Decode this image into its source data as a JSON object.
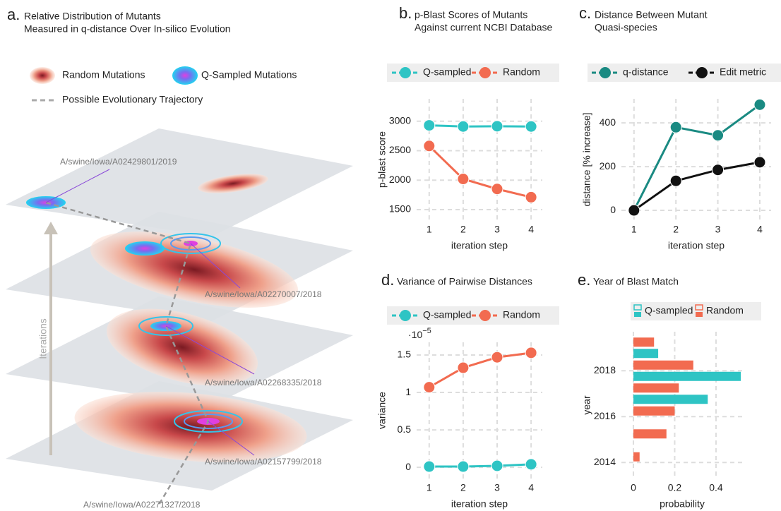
{
  "illustration": {
    "label": "a.",
    "title": [
      "Relative Distribution of Mutants",
      "Measured in q-distance Over In-silico Evolution"
    ],
    "legend": [
      "Random Mutations",
      "Q-Sampled Mutations",
      "Possible Evolutionary Trajectory"
    ],
    "strains": [
      "A/swine/Iowa/A02429801/2019",
      "A/swine/Iowa/A02270007/2018",
      "A/swine/Iowa/A02268335/2018",
      "A/swine/Iowa/A02157799/2018",
      "A/swine/Iowa/A02271327/2018"
    ],
    "axis_label": "Iterations"
  },
  "chart_data": [
    {
      "type": "line",
      "label": "b.",
      "title": [
        "p-Blast Scores of Mutants",
        "Against current NCBI Database"
      ],
      "x": [
        1,
        2,
        3,
        4
      ],
      "xlim": [
        0.63,
        4.33
      ],
      "xticks": [
        1,
        2,
        3,
        4
      ],
      "xlabel": "iteration step",
      "ylim": [
        1320,
        3380
      ],
      "yticks": [
        1500,
        2000,
        2500,
        3000
      ],
      "ylabel": "p-blast score",
      "grid": true,
      "series": [
        {
          "name": "Q-sampled",
          "color": "#2ec4c4",
          "values": [
            2930,
            2910,
            2915,
            2910
          ]
        },
        {
          "name": "Random",
          "color": "#f26b50",
          "values": [
            2580,
            2020,
            1850,
            1710
          ]
        }
      ]
    },
    {
      "type": "line",
      "label": "c.",
      "title": [
        "Distance Between Mutant",
        "Quasi-species"
      ],
      "x": [
        1,
        2,
        3,
        4
      ],
      "xlim": [
        0.7,
        4.27
      ],
      "xticks": [
        1,
        2,
        3,
        4
      ],
      "xlabel": "iteration step",
      "ylim": [
        -45,
        510
      ],
      "yticks": [
        0,
        200,
        400
      ],
      "ylabel": "distance [% increase]",
      "grid": true,
      "series": [
        {
          "name": "q-distance",
          "color": "#1a8a82",
          "values": [
            0,
            380,
            343,
            483
          ]
        },
        {
          "name": "Edit metric",
          "color": "#111111",
          "values": [
            0,
            135,
            185,
            220
          ]
        }
      ]
    },
    {
      "type": "line",
      "label": "d.",
      "title": [
        "Variance of Pairwise Distances"
      ],
      "x": [
        1,
        2,
        3,
        4
      ],
      "xlim": [
        0.63,
        4.33
      ],
      "xticks": [
        1,
        2,
        3,
        4
      ],
      "xlabel": "iteration step",
      "ylim": [
        -0.15,
        1.67
      ],
      "yticks": [
        0,
        0.5,
        1,
        1.5
      ],
      "ylabel": "variance",
      "y_scale_label": {
        "base": "·10",
        "exponent": "−5"
      },
      "grid": true,
      "series": [
        {
          "name": "Q-sampled",
          "color": "#2ec4c4",
          "values": [
            0.01,
            0.01,
            0.02,
            0.04
          ]
        },
        {
          "name": "Random",
          "color": "#f26b50",
          "values": [
            1.07,
            1.33,
            1.47,
            1.53
          ]
        }
      ]
    },
    {
      "type": "hbar",
      "label": "e.",
      "title": [
        "Year of Blast Match"
      ],
      "categories": [
        2014,
        2015,
        2016,
        2017,
        2018,
        2019
      ],
      "ylim": [
        2013.3,
        2019.7
      ],
      "yticks": [
        2014,
        2016,
        2018
      ],
      "ylabel": "year",
      "xlim": [
        -0.058,
        0.53
      ],
      "xticks": [
        0,
        0.2,
        0.4
      ],
      "xlabel": "probability",
      "grid": true,
      "series": [
        {
          "name": "Q-sampled",
          "color": "#2ec4c4",
          "values": [
            0,
            0,
            0,
            0.36,
            0.52,
            0.12
          ]
        },
        {
          "name": "Random",
          "color": "#f26b50",
          "values": [
            0.03,
            0.16,
            0.2,
            0.22,
            0.29,
            0.1
          ]
        }
      ]
    }
  ]
}
